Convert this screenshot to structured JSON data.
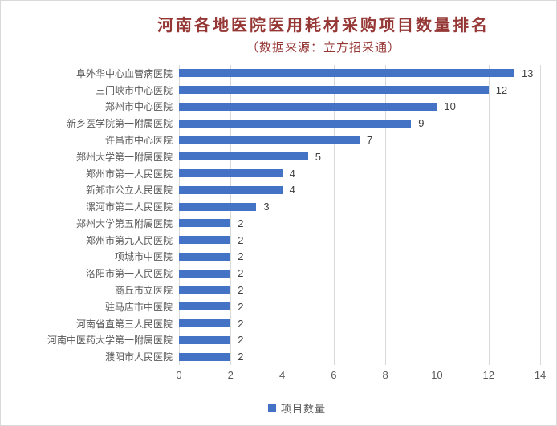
{
  "window": {
    "background": "#ffffff",
    "border_color": "#d9d9d9"
  },
  "chart_data": {
    "type": "bar",
    "orientation": "horizontal",
    "title": "河南各地医院医用耗材采购项目数量排名",
    "subtitle": "（数据来源：立方招采通）",
    "categories": [
      "阜外华中心血管病医院",
      "三门峡市中心医院",
      "郑州市中心医院",
      "新乡医学院第一附属医院",
      "许昌市中心医院",
      "郑州大学第一附属医院",
      "郑州市第一人民医院",
      "新郑市公立人民医院",
      "漯河市第二人民医院",
      "郑州大学第五附属医院",
      "郑州市第九人民医院",
      "项城市中医院",
      "洛阳市第一人民医院",
      "商丘市立医院",
      "驻马店市中医院",
      "河南省直第三人民医院",
      "河南中医药大学第一附属医院",
      "濮阳市人民医院"
    ],
    "values": [
      13,
      12,
      10,
      9,
      7,
      5,
      4,
      4,
      3,
      2,
      2,
      2,
      2,
      2,
      2,
      2,
      2,
      2
    ],
    "xlabel": "",
    "ylabel": "",
    "xlim": [
      0,
      14
    ],
    "x_ticks": [
      0,
      2,
      4,
      6,
      8,
      10,
      12,
      14
    ],
    "grid": "vertical",
    "data_labels": true,
    "legend": {
      "position": "bottom",
      "entries": [
        {
          "label": "项目数量",
          "color": "#4472C4"
        }
      ]
    },
    "colors": {
      "bar": "#4472C4",
      "title": "#953735",
      "subtitle": "#953735",
      "axis_text": "#595959",
      "value_label": "#404040",
      "gridline": "#d9d9d9"
    }
  }
}
